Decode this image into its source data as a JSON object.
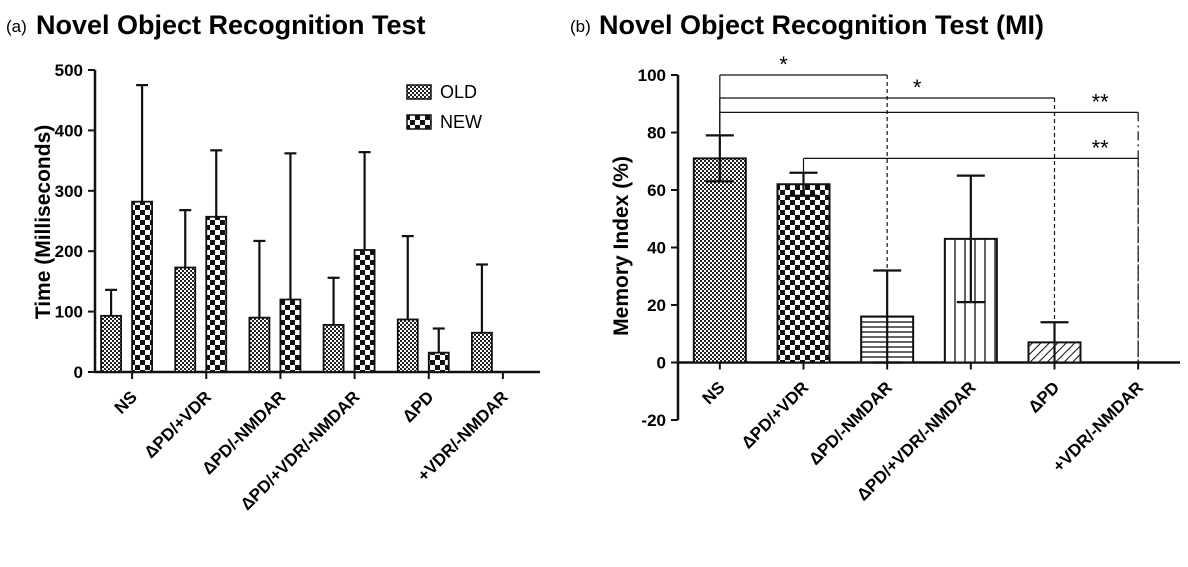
{
  "colors": {
    "ink": "#111111",
    "background": "#ffffff"
  },
  "chart_data": [
    {
      "panel_label": "(a)",
      "type": "bar",
      "title": "Novel Object Recognition Test",
      "xlabel": "",
      "ylabel": "Time (Milliseconds)",
      "ylim": [
        0,
        500
      ],
      "yticks": [
        "0",
        "100",
        "200",
        "300",
        "400",
        "500"
      ],
      "categories": [
        "NS",
        "ΔPD/+VDR",
        "ΔPD/-NMDAR",
        "ΔPD/+VDR/-NMDAR",
        "ΔPD",
        "+VDR/-NMDAR"
      ],
      "legend_position": "top-right",
      "series": [
        {
          "name": "OLD",
          "pattern": "fine-checker",
          "values": [
            93,
            173,
            90,
            78,
            87,
            65
          ],
          "error": [
            43,
            95,
            127,
            78,
            138,
            113
          ]
        },
        {
          "name": "NEW",
          "pattern": "coarse-checker",
          "values": [
            282,
            257,
            120,
            202,
            32,
            null
          ],
          "error": [
            193,
            110,
            242,
            162,
            40,
            null
          ]
        }
      ]
    },
    {
      "panel_label": "(b)",
      "type": "bar",
      "title": "Novel Object Recognition Test (MI)",
      "xlabel": "",
      "ylabel": "Memory Index (%)",
      "ylim": [
        -20,
        100
      ],
      "yticks": [
        "-20",
        "0",
        "20",
        "40",
        "60",
        "80",
        "100"
      ],
      "categories": [
        "NS",
        "ΔPD/+VDR",
        "ΔPD/-NMDAR",
        "ΔPD/+VDR/-NMDAR",
        "ΔPD",
        "+VDR/-NMDAR"
      ],
      "values": [
        71,
        62,
        16,
        43,
        7,
        0
      ],
      "error": [
        8,
        4,
        16,
        22,
        7,
        0
      ],
      "patterns": [
        "fine-checker",
        "coarse-checker",
        "horizontal-lines",
        "vertical-lines",
        "diagonal-lines",
        "none"
      ],
      "significance": [
        {
          "from": "NS",
          "to": "ΔPD/-NMDAR",
          "label": "*"
        },
        {
          "from": "NS",
          "to": "ΔPD",
          "label": "*"
        },
        {
          "from": "NS",
          "to": "+VDR/-NMDAR",
          "label": "**"
        },
        {
          "from": "ΔPD/+VDR",
          "to": "+VDR/-NMDAR",
          "label": "**"
        }
      ]
    }
  ]
}
